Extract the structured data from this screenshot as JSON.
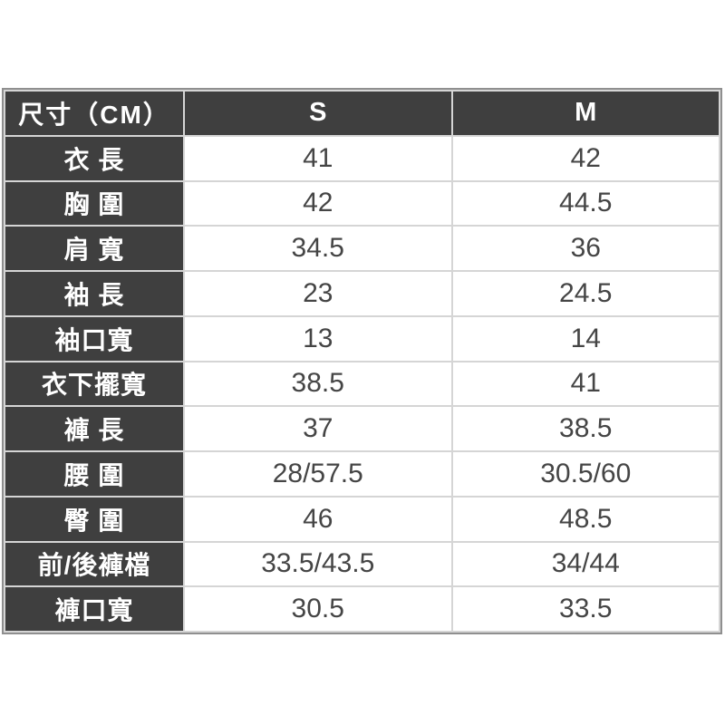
{
  "chart_data": {
    "type": "table",
    "title": "尺寸（CM）",
    "columns": [
      "尺寸（CM）",
      "S",
      "M"
    ],
    "rows": [
      {
        "label": "衣 長",
        "S": "41",
        "M": "42"
      },
      {
        "label": "胸 圍",
        "S": "42",
        "M": "44.5"
      },
      {
        "label": "肩 寬",
        "S": "34.5",
        "M": "36"
      },
      {
        "label": "袖 長",
        "S": "23",
        "M": "24.5"
      },
      {
        "label": "袖口寬",
        "S": "13",
        "M": "14"
      },
      {
        "label": "衣下擺寬",
        "S": "38.5",
        "M": "41"
      },
      {
        "label": "褲 長",
        "S": "37",
        "M": "38.5"
      },
      {
        "label": "腰 圍",
        "S": "28/57.5",
        "M": "30.5/60"
      },
      {
        "label": "臀 圍",
        "S": "46",
        "M": "48.5"
      },
      {
        "label": "前/後褲檔",
        "S": "33.5/43.5",
        "M": "34/44"
      },
      {
        "label": "褲口寬",
        "S": "30.5",
        "M": "33.5"
      }
    ],
    "layout": {
      "grid": "on",
      "unit": "CM",
      "header_style": "dark-inverse"
    }
  },
  "colors": {
    "page_bg": "#ffffff",
    "header_bg": "#3f3f3f",
    "header_text": "#ffffff",
    "value_text": "#454545",
    "grid_line": "#d5d5d5",
    "outer_border": "#8f8f8f"
  }
}
